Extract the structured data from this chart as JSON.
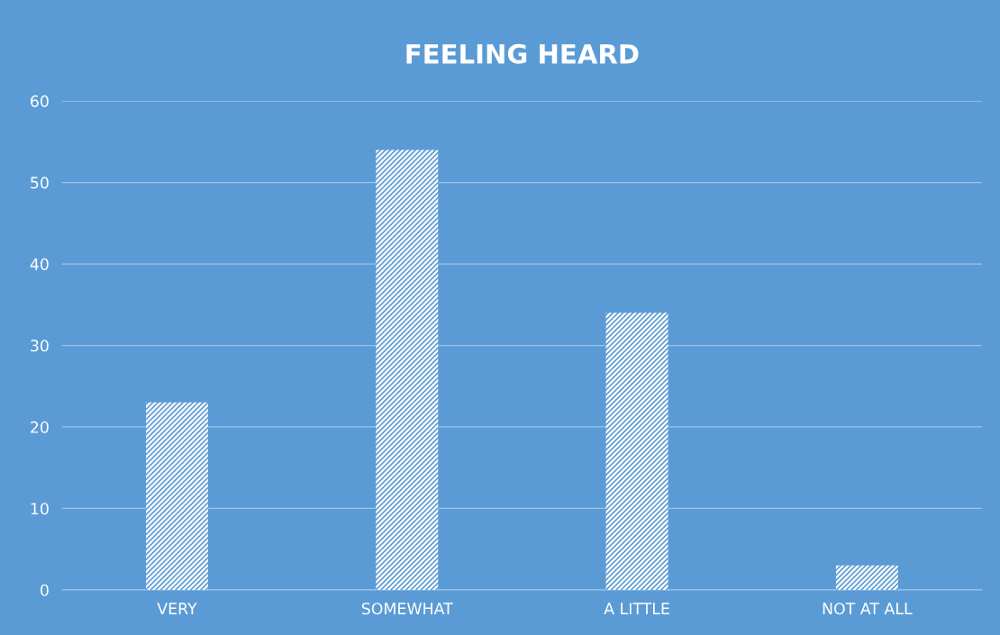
{
  "chart_data": {
    "type": "bar",
    "title": "FEELING HEARD",
    "categories": [
      "VERY",
      "SOMEWHAT",
      "A LITTLE",
      "NOT AT ALL"
    ],
    "values": [
      23,
      54,
      34,
      3
    ],
    "color": "#ffffff",
    "ylim": [
      0,
      60
    ],
    "yticks": [
      0,
      10,
      20,
      30,
      40,
      50,
      60
    ],
    "grid": "y",
    "legend": false
  }
}
